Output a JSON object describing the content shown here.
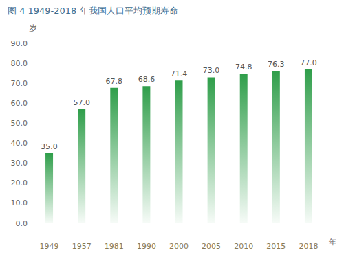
{
  "chart_data": {
    "type": "bar",
    "title": "图 4 1949-2018 年我国人口平均预期寿命",
    "ylabel": "岁",
    "xlabel": "年",
    "categories": [
      "1949",
      "1957",
      "1981",
      "1990",
      "2000",
      "2005",
      "2010",
      "2015",
      "2018"
    ],
    "values": [
      35.0,
      57.0,
      67.8,
      68.6,
      71.4,
      73.0,
      74.8,
      76.3,
      77.0
    ],
    "value_labels": [
      "35.0",
      "57.0",
      "67.8",
      "68.6",
      "71.4",
      "73.0",
      "74.8",
      "76.3",
      "77.0"
    ],
    "color": "#2f9e4a",
    "ylim": [
      0,
      90
    ],
    "yticks": [
      {
        "value": 0,
        "label": "0.0"
      },
      {
        "value": 10,
        "label": "10.0"
      },
      {
        "value": 20,
        "label": "20.0"
      },
      {
        "value": 30,
        "label": "30.0"
      },
      {
        "value": 40,
        "label": "40.0"
      },
      {
        "value": 50,
        "label": "50.0"
      },
      {
        "value": 60,
        "label": "60.0"
      },
      {
        "value": 70,
        "label": "70.0"
      },
      {
        "value": 80,
        "label": "80.0"
      },
      {
        "value": 90,
        "label": "90.0"
      }
    ],
    "grid": false,
    "data_labels": true
  }
}
